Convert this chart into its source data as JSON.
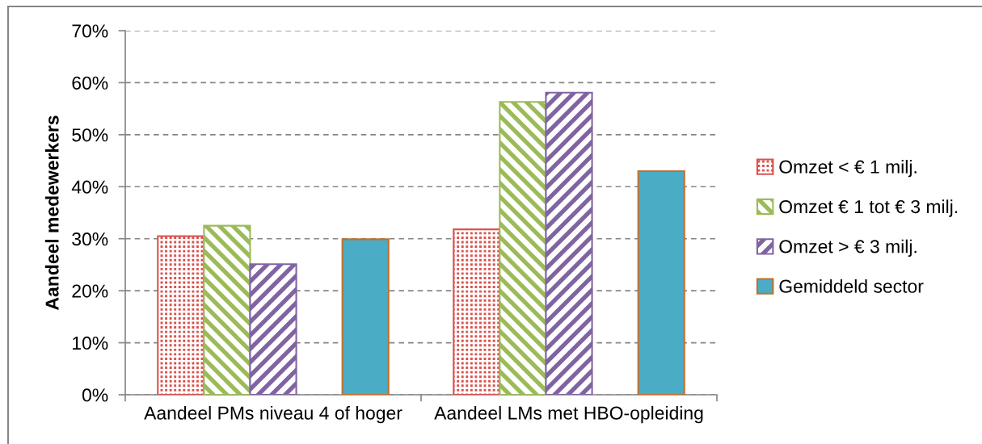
{
  "chart_data": {
    "type": "bar",
    "ylabel": "Aandeel medewerkers",
    "categories": [
      "Aandeel PMs niveau 4 of hoger",
      "Aandeel LMs met HBO-opleiding"
    ],
    "series": [
      {
        "name": "Omzet < € 1 milj.",
        "color": "#d9534f",
        "values": [
          30.5,
          31.8
        ]
      },
      {
        "name": "Omzet € 1 tot € 3 milj.",
        "color": "#9bbb59",
        "values": [
          32.5,
          56.3
        ]
      },
      {
        "name": "Omzet > € 3 milj.",
        "color": "#8064a2",
        "values": [
          25.1,
          58.1
        ]
      },
      {
        "values": [
          null,
          null
        ]
      },
      {
        "name": "Gemiddeld sector",
        "color": "#4bacc6",
        "values": [
          29.9,
          43.0
        ]
      }
    ],
    "ylim": [
      0,
      70
    ],
    "yticks": [
      {
        "value": 0,
        "label": "0%"
      },
      {
        "value": 10,
        "label": "10%"
      },
      {
        "value": 20,
        "label": "20%"
      },
      {
        "value": 30,
        "label": "30%"
      },
      {
        "value": 40,
        "label": "40%"
      },
      {
        "value": 50,
        "label": "50%"
      },
      {
        "value": 60,
        "label": "60%"
      },
      {
        "value": 70,
        "label": "70%"
      }
    ],
    "grid": "y",
    "legend": "right"
  }
}
